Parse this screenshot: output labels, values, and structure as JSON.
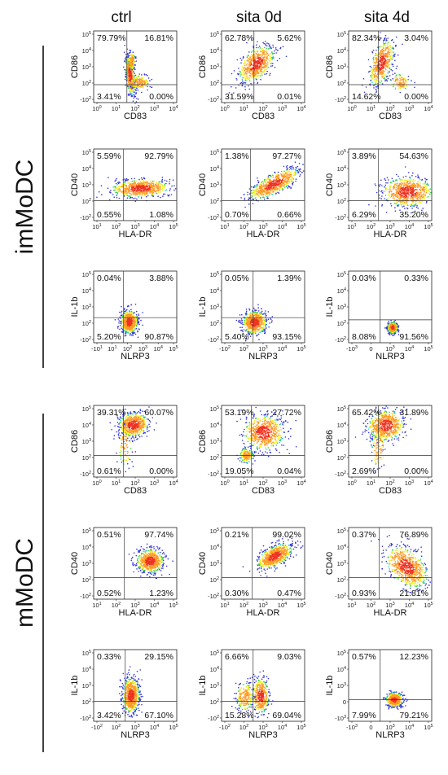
{
  "figure": {
    "columns": [
      "ctrl",
      "sita 0d",
      "sita 4d"
    ],
    "groups": [
      "imMoDC",
      "mMoDC"
    ]
  },
  "chart_data": [
    {
      "type": "scatter",
      "panel": "imMoDC-ctrl-CD86-CD83",
      "group": "imMoDC",
      "condition": "ctrl",
      "xlabel": "CD83",
      "ylabel": "CD86",
      "xticks": [
        "10^0",
        "10^1",
        "10^2",
        "10^3",
        "10^4"
      ],
      "yticks": [
        "-10^2",
        "10^2",
        "10^3",
        "10^4",
        "10^5"
      ],
      "quadrants": {
        "upper_left": "79.79%",
        "upper_right": "16.81%",
        "lower_left": "3.41%",
        "lower_right": "0.00%"
      },
      "populations": [
        {
          "cx": 0.44,
          "cy": 0.62,
          "sx": 0.025,
          "sy": 0.14,
          "rot": -5,
          "n": 520
        },
        {
          "cx": 0.55,
          "cy": 0.72,
          "sx": 0.06,
          "sy": 0.05,
          "rot": 0,
          "n": 180
        },
        {
          "cx": 0.46,
          "cy": 0.42,
          "sx": 0.02,
          "sy": 0.06,
          "rot": 0,
          "n": 120
        }
      ]
    },
    {
      "type": "scatter",
      "panel": "imMoDC-sita0d-CD86-CD83",
      "group": "imMoDC",
      "condition": "sita 0d",
      "xlabel": "CD83",
      "ylabel": "CD86",
      "xticks": [
        "10^0",
        "10^1",
        "10^2",
        "10^3",
        "10^4"
      ],
      "yticks": [
        "-10^2",
        "10^2",
        "10^3",
        "10^4",
        "10^5"
      ],
      "quadrants": {
        "upper_left": "62.78%",
        "upper_right": "5.62%",
        "lower_left": "31.59%",
        "lower_right": "0.01%"
      },
      "populations": [
        {
          "cx": 0.42,
          "cy": 0.46,
          "sx": 0.08,
          "sy": 0.14,
          "rot": 35,
          "n": 650
        }
      ]
    },
    {
      "type": "scatter",
      "panel": "imMoDC-sita4d-CD86-CD83",
      "group": "imMoDC",
      "condition": "sita 4d",
      "xlabel": "CD83",
      "ylabel": "CD86",
      "xticks": [
        "10^0",
        "10^1",
        "10^2",
        "10^3",
        "10^4"
      ],
      "yticks": [
        "-10^2",
        "10^2",
        "10^3",
        "10^4",
        "10^5"
      ],
      "quadrants": {
        "upper_left": "82.34%",
        "upper_right": "3.04%",
        "lower_left": "14.62%",
        "lower_right": "0.00%"
      },
      "populations": [
        {
          "cx": 0.4,
          "cy": 0.45,
          "sx": 0.06,
          "sy": 0.16,
          "rot": 15,
          "n": 520
        },
        {
          "cx": 0.62,
          "cy": 0.72,
          "sx": 0.06,
          "sy": 0.06,
          "rot": 0,
          "n": 110
        }
      ]
    },
    {
      "type": "scatter",
      "panel": "imMoDC-ctrl-CD40-HLADR",
      "group": "imMoDC",
      "condition": "ctrl",
      "xlabel": "HLA-DR",
      "ylabel": "CD40",
      "xticks": [
        "10^1",
        "10^2",
        "10^3",
        "10^4",
        "10^5"
      ],
      "yticks": [
        "-10^2",
        "10^2",
        "10^3",
        "10^4",
        "10^5"
      ],
      "quadrants": {
        "upper_left": "5.59%",
        "upper_right": "92.79%",
        "lower_left": "0.55%",
        "lower_right": "1.08%"
      },
      "populations": [
        {
          "cx": 0.56,
          "cy": 0.55,
          "sx": 0.17,
          "sy": 0.06,
          "rot": -3,
          "n": 700
        }
      ]
    },
    {
      "type": "scatter",
      "panel": "imMoDC-sita0d-CD40-HLADR",
      "group": "imMoDC",
      "condition": "sita 0d",
      "xlabel": "HLA-DR",
      "ylabel": "CD40",
      "xticks": [
        "10^1",
        "10^2",
        "10^3",
        "10^4",
        "10^5"
      ],
      "yticks": [
        "-10^2",
        "10^2",
        "10^3",
        "10^4",
        "10^5"
      ],
      "quadrants": {
        "upper_left": "1.38%",
        "upper_right": "97.27%",
        "lower_left": "0.70%",
        "lower_right": "0.66%"
      },
      "populations": [
        {
          "cx": 0.63,
          "cy": 0.49,
          "sx": 0.17,
          "sy": 0.06,
          "rot": -33,
          "n": 700
        }
      ]
    },
    {
      "type": "scatter",
      "panel": "imMoDC-sita4d-CD40-HLADR",
      "group": "imMoDC",
      "condition": "sita 4d",
      "xlabel": "HLA-DR",
      "ylabel": "CD40",
      "xticks": [
        "10^1",
        "10^2",
        "10^3",
        "10^4",
        "10^5"
      ],
      "yticks": [
        "-10^2",
        "10^2",
        "10^3",
        "10^4",
        "10^5"
      ],
      "quadrants": {
        "upper_left": "3.89%",
        "upper_right": "54.63%",
        "lower_left": "6.29%",
        "lower_right": "35.20%"
      },
      "populations": [
        {
          "cx": 0.71,
          "cy": 0.6,
          "sx": 0.15,
          "sy": 0.1,
          "rot": 0,
          "n": 750
        }
      ]
    },
    {
      "type": "scatter",
      "panel": "imMoDC-ctrl-IL1b-NLRP3",
      "group": "imMoDC",
      "condition": "ctrl",
      "xlabel": "NLRP3",
      "ylabel": "IL-1b",
      "xticks": [
        "-10^1",
        "10^1",
        "10^2",
        "10^3",
        "10^4",
        "10^5"
      ],
      "yticks": [
        "-10^2",
        "10^2",
        "10^3",
        "10^4",
        "10^5"
      ],
      "quadrants": {
        "upper_left": "0.04%",
        "upper_right": "3.88%",
        "lower_left": "5.20%",
        "lower_right": "90.87%"
      },
      "populations": [
        {
          "cx": 0.43,
          "cy": 0.71,
          "sx": 0.05,
          "sy": 0.08,
          "rot": 0,
          "n": 650
        }
      ]
    },
    {
      "type": "scatter",
      "panel": "imMoDC-sita0d-IL1b-NLRP3",
      "group": "imMoDC",
      "condition": "sita 0d",
      "xlabel": "NLRP3",
      "ylabel": "IL-1b",
      "xticks": [
        "-10^2",
        "10^2",
        "10^3",
        "10^4",
        "10^5"
      ],
      "yticks": [
        "-10^2",
        "10^2",
        "10^3",
        "10^4",
        "10^5"
      ],
      "quadrants": {
        "upper_left": "0.05%",
        "upper_right": "1.39%",
        "lower_left": "5.40%",
        "lower_right": "93.15%"
      },
      "populations": [
        {
          "cx": 0.4,
          "cy": 0.72,
          "sx": 0.07,
          "sy": 0.08,
          "rot": 0,
          "n": 650
        }
      ]
    },
    {
      "type": "scatter",
      "panel": "imMoDC-sita4d-IL1b-NLRP3",
      "group": "imMoDC",
      "condition": "sita 4d",
      "xlabel": "NLRP3",
      "ylabel": "IL-1b",
      "xticks": [
        "-10^3",
        "0",
        "10^3",
        "10^4",
        "10^5"
      ],
      "yticks": [
        "-10^2",
        "10^2",
        "10^3",
        "10^4",
        "10^5"
      ],
      "quadrants": {
        "upper_left": "0.03%",
        "upper_right": "0.33%",
        "lower_left": "8.08%",
        "lower_right": "91.56%"
      },
      "populations": [
        {
          "cx": 0.53,
          "cy": 0.79,
          "sx": 0.03,
          "sy": 0.04,
          "rot": 0,
          "n": 450
        }
      ]
    },
    {
      "type": "scatter",
      "panel": "mMoDC-ctrl-CD86-CD83",
      "group": "mMoDC",
      "condition": "ctrl",
      "xlabel": "CD83",
      "ylabel": "CD86",
      "xticks": [
        "10^0",
        "10^1",
        "10^2",
        "10^3",
        "10^4"
      ],
      "yticks": [
        "-10^2",
        "10^2",
        "10^3",
        "10^4",
        "10^5"
      ],
      "quadrants": {
        "upper_left": "39.31%",
        "upper_right": "60.07%",
        "lower_left": "0.61%",
        "lower_right": "0.00%"
      },
      "populations": [
        {
          "cx": 0.48,
          "cy": 0.27,
          "sx": 0.09,
          "sy": 0.08,
          "rot": -20,
          "n": 650
        },
        {
          "cx": 0.38,
          "cy": 0.55,
          "sx": 0.04,
          "sy": 0.14,
          "rot": 0,
          "n": 90
        }
      ]
    },
    {
      "type": "scatter",
      "panel": "mMoDC-sita0d-CD86-CD83",
      "group": "mMoDC",
      "condition": "sita 0d",
      "xlabel": "CD83",
      "ylabel": "CD86",
      "xticks": [
        "10^0",
        "10^1",
        "10^2",
        "10^3",
        "10^4"
      ],
      "yticks": [
        "-10^2",
        "10^2",
        "10^3",
        "10^4",
        "10^5"
      ],
      "quadrants": {
        "upper_left": "53.19%",
        "upper_right": "27.72%",
        "lower_left": "19.05%",
        "lower_right": "0.04%"
      },
      "populations": [
        {
          "cx": 0.51,
          "cy": 0.38,
          "sx": 0.12,
          "sy": 0.12,
          "rot": -30,
          "n": 650
        },
        {
          "cx": 0.3,
          "cy": 0.7,
          "sx": 0.04,
          "sy": 0.05,
          "rot": 0,
          "n": 180
        }
      ]
    },
    {
      "type": "scatter",
      "panel": "mMoDC-sita4d-CD86-CD83",
      "group": "mMoDC",
      "condition": "sita 4d",
      "xlabel": "CD83",
      "ylabel": "CD86",
      "xticks": [
        "10^0",
        "10^1",
        "10^2",
        "10^3",
        "10^4"
      ],
      "yticks": [
        "-10^2",
        "10^2",
        "10^3",
        "10^4",
        "10^5"
      ],
      "quadrants": {
        "upper_left": "65.42%",
        "upper_right": "31.89%",
        "lower_left": "2.69%",
        "lower_right": "0.00%"
      },
      "populations": [
        {
          "cx": 0.45,
          "cy": 0.28,
          "sx": 0.11,
          "sy": 0.1,
          "rot": -30,
          "n": 650
        },
        {
          "cx": 0.36,
          "cy": 0.6,
          "sx": 0.04,
          "sy": 0.14,
          "rot": 0,
          "n": 90
        }
      ]
    },
    {
      "type": "scatter",
      "panel": "mMoDC-ctrl-CD40-HLADR",
      "group": "mMoDC",
      "condition": "ctrl",
      "xlabel": "HLA-DR",
      "ylabel": "CD40",
      "xticks": [
        "10^1",
        "10^2",
        "10^3",
        "10^4",
        "10^5"
      ],
      "yticks": [
        "-10^2",
        "10^2",
        "10^3",
        "10^4",
        "10^5"
      ],
      "quadrants": {
        "upper_left": "0.51%",
        "upper_right": "97.74%",
        "lower_left": "0.52%",
        "lower_right": "1.23%"
      },
      "populations": [
        {
          "cx": 0.68,
          "cy": 0.47,
          "sx": 0.08,
          "sy": 0.08,
          "rot": -30,
          "n": 650
        }
      ]
    },
    {
      "type": "scatter",
      "panel": "mMoDC-sita0d-CD40-HLADR",
      "group": "mMoDC",
      "condition": "sita 0d",
      "xlabel": "HLA-DR",
      "ylabel": "CD40",
      "xticks": [
        "10^1",
        "10^2",
        "10^3",
        "10^4",
        "10^5"
      ],
      "yticks": [
        "-10^2",
        "10^2",
        "10^3",
        "10^4",
        "10^5"
      ],
      "quadrants": {
        "upper_left": "0.21%",
        "upper_right": "99.02%",
        "lower_left": "0.30%",
        "lower_right": "0.47%"
      },
      "populations": [
        {
          "cx": 0.64,
          "cy": 0.4,
          "sx": 0.12,
          "sy": 0.06,
          "rot": -35,
          "n": 700
        }
      ]
    },
    {
      "type": "scatter",
      "panel": "mMoDC-sita4d-CD40-HLADR",
      "group": "mMoDC",
      "condition": "sita 4d",
      "xlabel": "HLA-DR",
      "ylabel": "CD40",
      "xticks": [
        "10^1",
        "10^2",
        "10^3",
        "10^4",
        "10^5"
      ],
      "yticks": [
        "-10^2",
        "10^2",
        "10^3",
        "10^4",
        "10^5"
      ],
      "quadrants": {
        "upper_left": "0.37%",
        "upper_right": "76.89%",
        "lower_left": "0.93%",
        "lower_right": "21.81%"
      },
      "populations": [
        {
          "cx": 0.7,
          "cy": 0.55,
          "sx": 0.1,
          "sy": 0.16,
          "rot": -35,
          "n": 750
        }
      ]
    },
    {
      "type": "scatter",
      "panel": "mMoDC-ctrl-IL1b-NLRP3",
      "group": "mMoDC",
      "condition": "ctrl",
      "xlabel": "NLRP3",
      "ylabel": "IL-1b",
      "xticks": [
        "-10^2",
        "10^2",
        "10^3",
        "10^4",
        "10^5"
      ],
      "yticks": [
        "-10^2",
        "10^2",
        "10^3",
        "10^4",
        "10^5"
      ],
      "quadrants": {
        "upper_left": "0.33%",
        "upper_right": "29.15%",
        "lower_left": "3.42%",
        "lower_right": "67.10%"
      },
      "populations": [
        {
          "cx": 0.45,
          "cy": 0.64,
          "sx": 0.05,
          "sy": 0.12,
          "rot": 0,
          "n": 650
        }
      ]
    },
    {
      "type": "scatter",
      "panel": "mMoDC-sita0d-IL1b-NLRP3",
      "group": "mMoDC",
      "condition": "sita 0d",
      "xlabel": "NLRP3",
      "ylabel": "IL-1b",
      "xticks": [
        "-10^2",
        "10^2",
        "10^3",
        "10^4",
        "10^5"
      ],
      "yticks": [
        "-10^2",
        "10^2",
        "10^3",
        "10^4",
        "10^5"
      ],
      "quadrants": {
        "upper_left": "6.66%",
        "upper_right": "9.03%",
        "lower_left": "15.28%",
        "lower_right": "69.04%"
      },
      "populations": [
        {
          "cx": 0.47,
          "cy": 0.65,
          "sx": 0.05,
          "sy": 0.12,
          "rot": 0,
          "n": 420
        },
        {
          "cx": 0.28,
          "cy": 0.66,
          "sx": 0.05,
          "sy": 0.1,
          "rot": 0,
          "n": 220
        }
      ]
    },
    {
      "type": "scatter",
      "panel": "mMoDC-sita4d-IL1b-NLRP3",
      "group": "mMoDC",
      "condition": "sita 4d",
      "xlabel": "NLRP3",
      "ylabel": "IL-1b",
      "xticks": [
        "-10^3",
        "0",
        "10^3",
        "10^4",
        "10^5"
      ],
      "yticks": [
        "-10^3",
        "0",
        "10^3",
        "10^4",
        "10^5"
      ],
      "quadrants": {
        "upper_left": "0.57%",
        "upper_right": "12.23%",
        "lower_left": "7.99%",
        "lower_right": "79.21%"
      },
      "populations": [
        {
          "cx": 0.55,
          "cy": 0.7,
          "sx": 0.05,
          "sy": 0.05,
          "rot": 0,
          "n": 500
        }
      ]
    }
  ]
}
